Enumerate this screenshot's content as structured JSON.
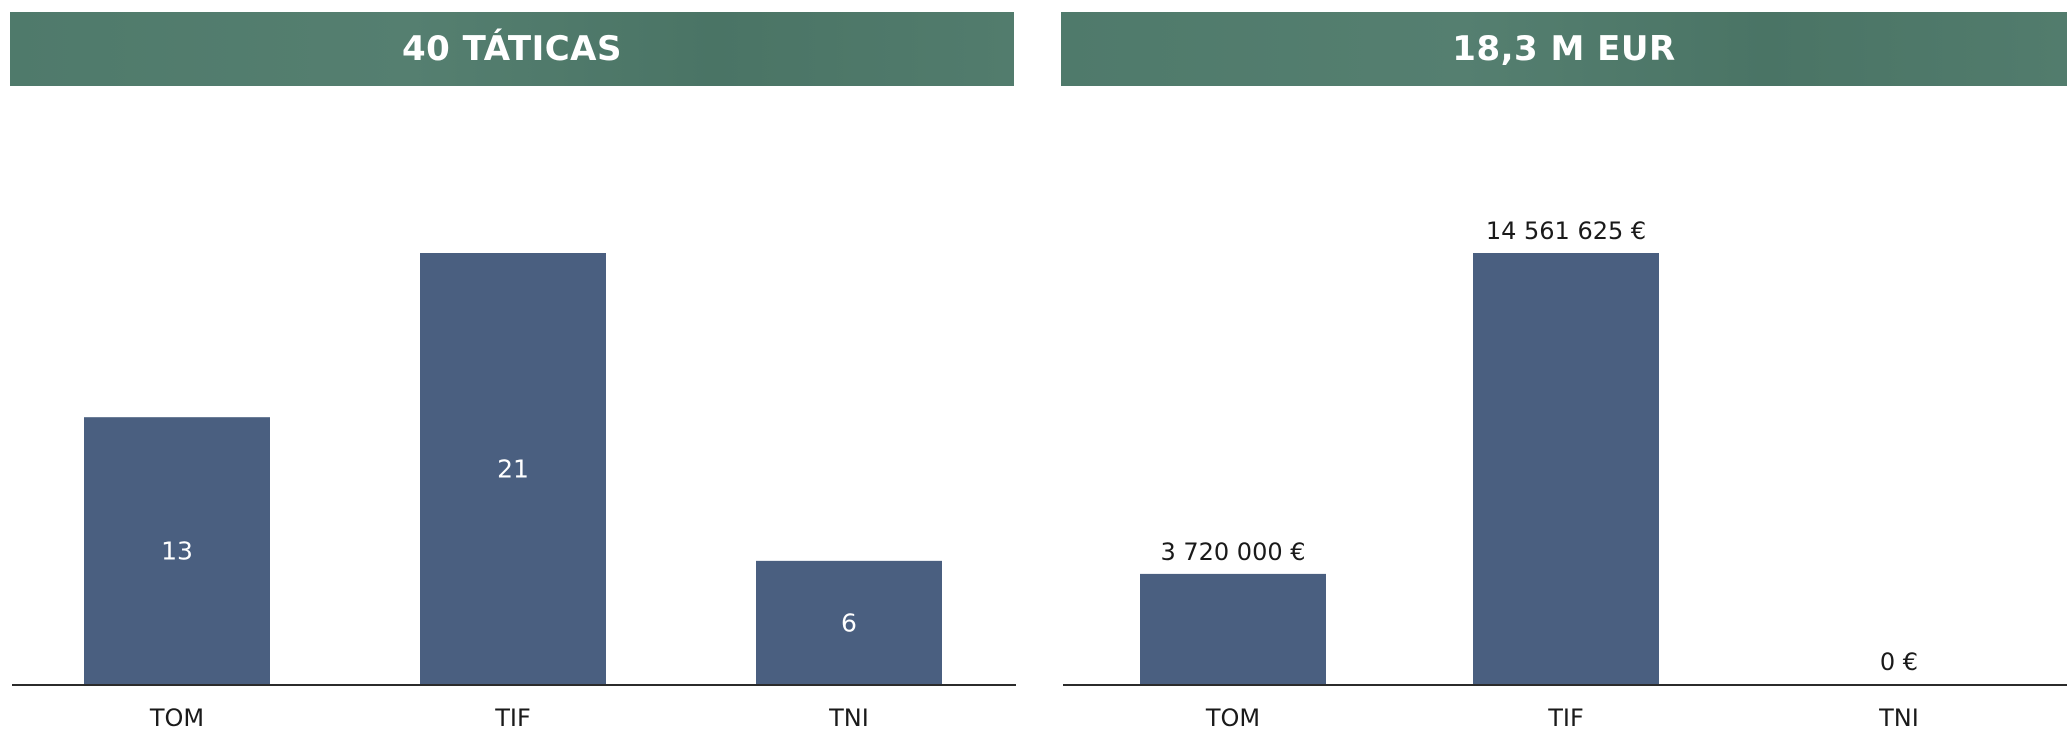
{
  "colors": {
    "banner": "#4f7a6b",
    "bar": "#4a5f80",
    "axis": "#2b2b2b"
  },
  "panels": [
    {
      "title": "40 TÁTICAS"
    },
    {
      "title": "18,3 M EUR"
    }
  ],
  "chart_data": [
    {
      "type": "bar",
      "title": "40 TÁTICAS",
      "categories": [
        "TOM",
        "TIF",
        "TNI"
      ],
      "values": [
        13,
        21,
        6
      ],
      "data_labels": [
        "13",
        "21",
        "6"
      ],
      "data_label_position": "center",
      "xlabel": "",
      "ylabel": "",
      "ylim": [
        0,
        21
      ],
      "grid": false,
      "legend": "none"
    },
    {
      "type": "bar",
      "title": "18,3 M EUR",
      "categories": [
        "TOM",
        "TIF",
        "TNI"
      ],
      "values": [
        3720000,
        14561625,
        0
      ],
      "data_labels": [
        "3 720 000 €",
        "14 561 625 €",
        "0 €"
      ],
      "data_label_position": "outside-end",
      "xlabel": "",
      "ylabel": "",
      "ylim": [
        0,
        14561625
      ],
      "grid": false,
      "legend": "none"
    }
  ]
}
